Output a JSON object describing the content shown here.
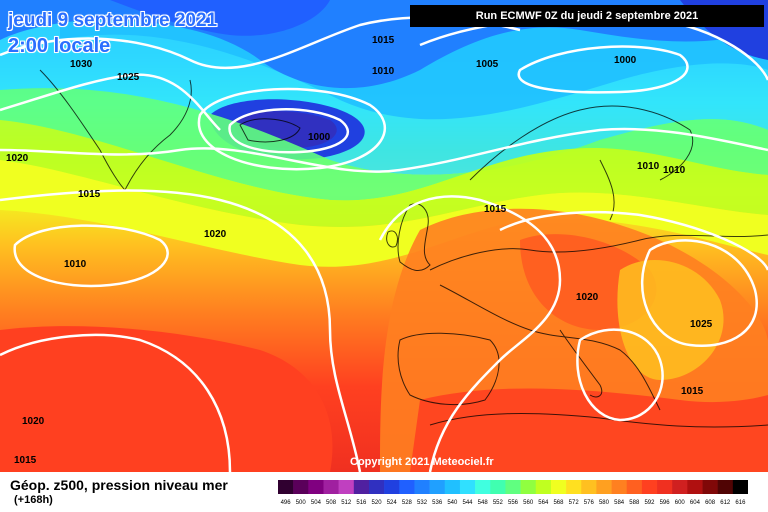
{
  "header": {
    "date_line": "jeudi 9 septembre 2021",
    "time_line": "2:00 locale",
    "run_info": "Run ECMWF 0Z du jeudi 2 septembre 2021"
  },
  "footer": {
    "parameter": "Géop. z500, pression niveau mer",
    "lead_time": "(+168h)",
    "copyright": "Copyright 2021 Meteociel.fr"
  },
  "isobar_labels": [
    {
      "text": "1030"
    },
    {
      "text": "1025"
    },
    {
      "text": "1015"
    },
    {
      "text": "1010"
    },
    {
      "text": "1005"
    },
    {
      "text": "1000"
    },
    {
      "text": "1000"
    },
    {
      "text": "1020"
    },
    {
      "text": "1015"
    },
    {
      "text": "1010"
    },
    {
      "text": "1020"
    },
    {
      "text": "1015"
    },
    {
      "text": "1010"
    },
    {
      "text": "1010"
    },
    {
      "text": "1020"
    },
    {
      "text": "1025"
    },
    {
      "text": "1015"
    },
    {
      "text": "1020"
    },
    {
      "text": "1015"
    }
  ],
  "color_scale": {
    "ticks": [
      "496",
      "500",
      "504",
      "508",
      "512",
      "516",
      "520",
      "524",
      "528",
      "532",
      "536",
      "540",
      "544",
      "548",
      "552",
      "556",
      "560",
      "564",
      "568",
      "572",
      "576",
      "580",
      "584",
      "588",
      "592",
      "596",
      "600",
      "604",
      "608",
      "612",
      "616"
    ],
    "colors": [
      "#300030",
      "#5a005a",
      "#800080",
      "#a020a0",
      "#c040c0",
      "#5020a0",
      "#3030c0",
      "#2040e0",
      "#2060ff",
      "#2080ff",
      "#20a0ff",
      "#20c0ff",
      "#30e0ff",
      "#40ffe0",
      "#40ffb0",
      "#60ff80",
      "#90ff40",
      "#c0ff20",
      "#f0ff20",
      "#ffe020",
      "#ffc020",
      "#ffa020",
      "#ff8020",
      "#ff6020",
      "#ff4020",
      "#f03020",
      "#d02020",
      "#b01010",
      "#800808",
      "#500404",
      "#000000"
    ]
  }
}
